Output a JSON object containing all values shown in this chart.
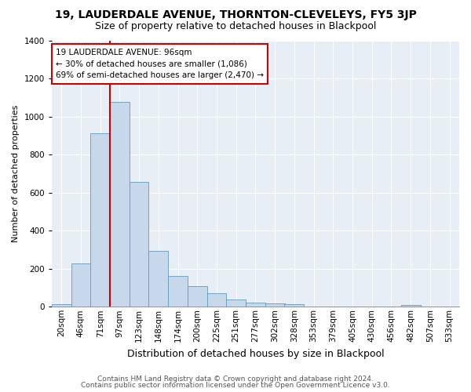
{
  "title": "19, LAUDERDALE AVENUE, THORNTON-CLEVELEYS, FY5 3JP",
  "subtitle": "Size of property relative to detached houses in Blackpool",
  "xlabel": "Distribution of detached houses by size in Blackpool",
  "ylabel": "Number of detached properties",
  "bar_color": "#c8d8eb",
  "bar_edge_color": "#6699bb",
  "bin_labels": [
    "20sqm",
    "46sqm",
    "71sqm",
    "97sqm",
    "123sqm",
    "148sqm",
    "174sqm",
    "200sqm",
    "225sqm",
    "251sqm",
    "277sqm",
    "302sqm",
    "328sqm",
    "353sqm",
    "379sqm",
    "405sqm",
    "430sqm",
    "456sqm",
    "482sqm",
    "507sqm",
    "533sqm"
  ],
  "bar_heights": [
    15,
    228,
    912,
    1075,
    655,
    293,
    160,
    108,
    70,
    40,
    22,
    18,
    14,
    0,
    0,
    0,
    0,
    0,
    10,
    0,
    0
  ],
  "vline_x": 3.0,
  "vline_color": "#cc0000",
  "ylim": [
    0,
    1400
  ],
  "yticks": [
    0,
    200,
    400,
    600,
    800,
    1000,
    1200,
    1400
  ],
  "annotation_text": "19 LAUDERDALE AVENUE: 96sqm\n← 30% of detached houses are smaller (1,086)\n69% of semi-detached houses are larger (2,470) →",
  "annotation_box_color": "#ffffff",
  "annotation_border_color": "#cc0000",
  "footer_line1": "Contains HM Land Registry data © Crown copyright and database right 2024.",
  "footer_line2": "Contains public sector information licensed under the Open Government Licence v3.0.",
  "background_color": "#ffffff",
  "plot_background": "#e8eef5",
  "grid_color": "#ffffff",
  "title_fontsize": 10,
  "subtitle_fontsize": 9,
  "xlabel_fontsize": 9,
  "ylabel_fontsize": 8,
  "tick_fontsize": 7.5,
  "footer_fontsize": 6.5
}
